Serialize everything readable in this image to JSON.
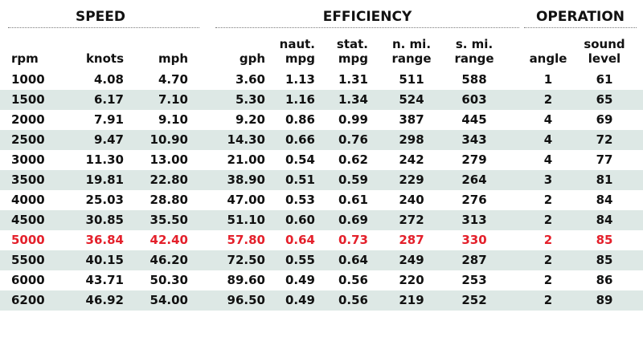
{
  "groups": {
    "speed": "SPEED",
    "efficiency": "EFFICIENCY",
    "operation": "OPERATION"
  },
  "headers": [
    [
      "rpm"
    ],
    [
      "knots"
    ],
    [
      "mph"
    ],
    [
      "gph"
    ],
    [
      "naut.",
      "mpg"
    ],
    [
      "stat.",
      "mpg"
    ],
    [
      "n. mi.",
      "range"
    ],
    [
      "s. mi.",
      "range"
    ],
    [
      "angle"
    ],
    [
      "sound",
      "level"
    ]
  ],
  "rows": [
    [
      "1000",
      "4.08",
      "4.70",
      "3.60",
      "1.13",
      "1.31",
      "511",
      "588",
      "1",
      "61"
    ],
    [
      "1500",
      "6.17",
      "7.10",
      "5.30",
      "1.16",
      "1.34",
      "524",
      "603",
      "2",
      "65"
    ],
    [
      "2000",
      "7.91",
      "9.10",
      "9.20",
      "0.86",
      "0.99",
      "387",
      "445",
      "4",
      "69"
    ],
    [
      "2500",
      "9.47",
      "10.90",
      "14.30",
      "0.66",
      "0.76",
      "298",
      "343",
      "4",
      "72"
    ],
    [
      "3000",
      "11.30",
      "13.00",
      "21.00",
      "0.54",
      "0.62",
      "242",
      "279",
      "4",
      "77"
    ],
    [
      "3500",
      "19.81",
      "22.80",
      "38.90",
      "0.51",
      "0.59",
      "229",
      "264",
      "3",
      "81"
    ],
    [
      "4000",
      "25.03",
      "28.80",
      "47.00",
      "0.53",
      "0.61",
      "240",
      "276",
      "2",
      "84"
    ],
    [
      "4500",
      "30.85",
      "35.50",
      "51.10",
      "0.60",
      "0.69",
      "272",
      "313",
      "2",
      "84"
    ],
    [
      "5000",
      "36.84",
      "42.40",
      "57.80",
      "0.64",
      "0.73",
      "287",
      "330",
      "2",
      "85"
    ],
    [
      "5500",
      "40.15",
      "46.20",
      "72.50",
      "0.55",
      "0.64",
      "249",
      "287",
      "2",
      "85"
    ],
    [
      "6000",
      "43.71",
      "50.30",
      "89.60",
      "0.49",
      "0.56",
      "220",
      "253",
      "2",
      "86"
    ],
    [
      "6200",
      "46.92",
      "54.00",
      "96.50",
      "0.49",
      "0.56",
      "219",
      "252",
      "2",
      "89"
    ]
  ],
  "highlight_row": 8,
  "colors": {
    "highlight_text": "#e4202b",
    "shade": "#dde8e5",
    "text": "#111111"
  }
}
